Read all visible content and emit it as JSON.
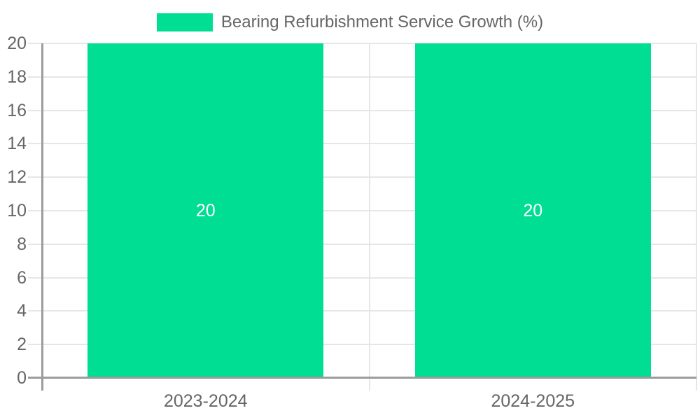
{
  "chart_data": {
    "type": "bar",
    "title": "",
    "legend": {
      "position": "top",
      "label": "Bearing Refurbishment Service Growth (%)"
    },
    "categories": [
      "2023-2024",
      "2024-2025"
    ],
    "series": [
      {
        "name": "Bearing Refurbishment Service Growth (%)",
        "values": [
          20,
          20
        ]
      }
    ],
    "data_labels": [
      "20",
      "20"
    ],
    "xlabel": "",
    "ylabel": "",
    "ylim": [
      0,
      20
    ],
    "ytick_step": 2,
    "yticks": [
      0,
      2,
      4,
      6,
      8,
      10,
      12,
      14,
      16,
      18,
      20
    ],
    "grid": true,
    "colors": {
      "bar": "#00de94",
      "data_label": "#ffffff",
      "axis_text": "#666666",
      "grid_line": "#e6e6e6",
      "axis_line": "#9c9c9c",
      "background": "#ffffff"
    }
  }
}
